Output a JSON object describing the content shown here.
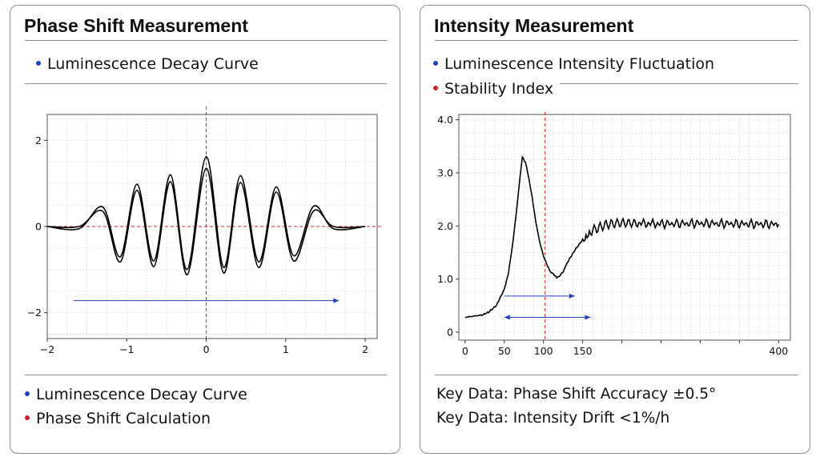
{
  "left_panel": {
    "title": "Phase Shift Measurement",
    "top_legend": [
      "Luminescence Decay Curve"
    ],
    "bottom_legend": [
      {
        "label": "Luminescence Decay Curve",
        "color": "#1f3fc0"
      },
      {
        "label": "Phase Shift Calculation",
        "color": "#d0202a"
      }
    ]
  },
  "right_panel": {
    "title": "Intensity Measurement",
    "top_legend": [
      {
        "label": "Luminescence Intensity Fluctuation",
        "color": "#1f3fc0"
      },
      {
        "label": "Stability Index",
        "color": "#d0202a"
      }
    ],
    "key_data": [
      "Key Data: Phase Shift Accuracy ±0.5°",
      "Key Data: Intensity Drift <1%/h"
    ]
  },
  "chart_data": [
    {
      "type": "line",
      "title": "",
      "xlim": [
        -2,
        2.15
      ],
      "ylim": [
        -2.6,
        2.6
      ],
      "x_ticks": [
        -2,
        -1,
        0,
        1,
        2
      ],
      "x_tick_labels": [
        "−2",
        "−1",
        "0",
        "1",
        "2"
      ],
      "y_ticks": [
        -2,
        0,
        2
      ],
      "y_tick_labels": [
        "−2",
        "0",
        "2"
      ],
      "grid": true,
      "series": [
        {
          "color": "#000000",
          "x": [
            -2.0,
            -1.6,
            -1.3,
            -1.08,
            -0.87,
            -0.66,
            -0.45,
            -0.24,
            0.0,
            0.22,
            0.43,
            0.66,
            0.88,
            1.1,
            1.35,
            1.6,
            2.0
          ],
          "y": [
            0.0,
            -0.05,
            0.45,
            -0.7,
            0.98,
            -0.8,
            1.2,
            -1.0,
            1.62,
            -0.95,
            1.18,
            -0.82,
            0.92,
            -0.68,
            0.47,
            -0.05,
            0.0
          ]
        },
        {
          "color": "#000000",
          "x": [
            -2.0,
            -1.6,
            -1.3,
            -1.08,
            -0.87,
            -0.66,
            -0.45,
            -0.24,
            0.0,
            0.22,
            0.43,
            0.66,
            0.88,
            1.1,
            1.35,
            1.6,
            2.0
          ],
          "y": [
            0.0,
            0.0,
            0.35,
            -0.82,
            0.84,
            -0.93,
            1.04,
            -1.12,
            1.35,
            -1.08,
            1.02,
            -0.95,
            0.8,
            -0.8,
            0.36,
            0.0,
            0.0
          ]
        }
      ],
      "reference_lines": [
        {
          "axis": "x",
          "value": 0,
          "color": "#d0202a",
          "style": "dashed"
        },
        {
          "axis": "y",
          "value": 0,
          "color": "#d0202a",
          "style": "dashed"
        }
      ],
      "arrows": [
        {
          "from": [
            -1.67,
            -1.72
          ],
          "to": [
            1.67,
            -1.72
          ],
          "color": "#1f3fc0",
          "heads": "end"
        }
      ]
    },
    {
      "type": "line",
      "title": "",
      "xlim": [
        -8,
        415
      ],
      "ylim": [
        -0.15,
        4.1
      ],
      "x_ticks": [
        0,
        50,
        100,
        150,
        200,
        250,
        300,
        350,
        400
      ],
      "x_tick_labels": [
        "0",
        "50",
        "100",
        "150",
        "",
        "",
        "",
        "",
        "400"
      ],
      "y_ticks": [
        0,
        1.0,
        2.0,
        3.0,
        4.0
      ],
      "y_tick_labels": [
        "0",
        "1.0",
        "2.0",
        "3.0",
        "4.0"
      ],
      "grid": true,
      "series": [
        {
          "color": "#000000",
          "x": [
            0,
            20,
            30,
            40,
            50,
            55,
            60,
            65,
            70,
            73,
            77,
            80,
            85,
            90,
            95,
            100,
            105,
            110,
            117,
            125,
            130,
            140,
            150,
            160,
            180,
            200,
            220,
            250,
            300,
            350,
            400
          ],
          "y": [
            0.28,
            0.32,
            0.38,
            0.5,
            0.8,
            1.1,
            1.6,
            2.2,
            2.9,
            3.3,
            3.2,
            3.0,
            2.6,
            2.1,
            1.7,
            1.42,
            1.25,
            1.12,
            1.03,
            1.12,
            1.3,
            1.55,
            1.75,
            1.9,
            2.03,
            2.06,
            2.05,
            2.04,
            2.05,
            2.04,
            2.03
          ]
        }
      ],
      "reference_lines": [
        {
          "axis": "x",
          "value": 102,
          "color": "#d0202a",
          "style": "dashed"
        }
      ],
      "arrows": [
        {
          "from": [
            50,
            0.68
          ],
          "to": [
            140,
            0.68
          ],
          "color": "#1f3fc0",
          "heads": "end"
        },
        {
          "from": [
            50,
            0.28
          ],
          "to": [
            160,
            0.28
          ],
          "color": "#1f3fc0",
          "heads": "both"
        }
      ]
    }
  ]
}
